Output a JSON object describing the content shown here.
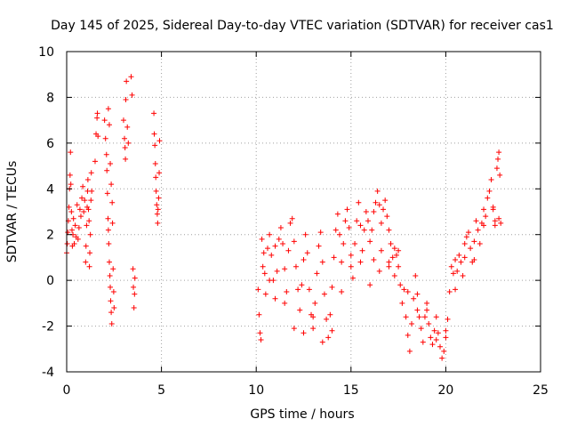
{
  "chart_data": {
    "type": "scatter",
    "title": "Day 145 of 2025, Sidereal Day-to-day VTEC variation (SDTVAR) for receiver cas1",
    "xlabel": "GPS time / hours",
    "ylabel": "SDTVAR / TECUs",
    "xlim": [
      0,
      25
    ],
    "ylim": [
      -4,
      10
    ],
    "xticks": [
      "0",
      "5",
      "10",
      "15",
      "20",
      "25"
    ],
    "yticks": [
      "-4",
      "-2",
      "0",
      "2",
      "4",
      "6",
      "8",
      "10"
    ],
    "grid": true,
    "marker": "+",
    "color": "#ff0000",
    "series": [
      {
        "name": "SDTVAR",
        "points": [
          [
            0.0,
            1.2
          ],
          [
            0.03,
            1.6
          ],
          [
            0.06,
            2.1
          ],
          [
            0.09,
            2.6
          ],
          [
            0.12,
            3.2
          ],
          [
            0.15,
            4.0
          ],
          [
            0.18,
            4.6
          ],
          [
            0.2,
            5.6
          ],
          [
            0.22,
            4.2
          ],
          [
            0.25,
            3.0
          ],
          [
            0.28,
            2.2
          ],
          [
            0.3,
            1.5
          ],
          [
            0.33,
            2.0
          ],
          [
            0.36,
            2.7
          ],
          [
            0.4,
            1.6
          ],
          [
            0.45,
            2.4
          ],
          [
            0.5,
            1.9
          ],
          [
            0.55,
            3.3
          ],
          [
            0.6,
            1.8
          ],
          [
            0.65,
            2.3
          ],
          [
            0.7,
            3.1
          ],
          [
            0.75,
            2.8
          ],
          [
            0.8,
            3.6
          ],
          [
            0.85,
            4.1
          ],
          [
            0.9,
            3.0
          ],
          [
            0.95,
            3.5
          ],
          [
            1.0,
            0.8
          ],
          [
            1.02,
            1.5
          ],
          [
            1.05,
            2.4
          ],
          [
            1.08,
            3.2
          ],
          [
            1.1,
            3.9
          ],
          [
            1.12,
            4.4
          ],
          [
            1.15,
            3.1
          ],
          [
            1.18,
            2.6
          ],
          [
            1.2,
            0.6
          ],
          [
            1.22,
            1.2
          ],
          [
            1.25,
            2.0
          ],
          [
            1.28,
            3.5
          ],
          [
            1.3,
            4.7
          ],
          [
            1.32,
            3.9
          ],
          [
            1.5,
            5.2
          ],
          [
            1.55,
            6.4
          ],
          [
            1.6,
            7.1
          ],
          [
            1.62,
            7.3
          ],
          [
            1.65,
            6.3
          ],
          [
            2.0,
            7.0
          ],
          [
            2.05,
            6.2
          ],
          [
            2.1,
            5.5
          ],
          [
            2.12,
            4.8
          ],
          [
            2.15,
            3.8
          ],
          [
            2.18,
            2.7
          ],
          [
            2.2,
            2.2
          ],
          [
            2.22,
            1.6
          ],
          [
            2.25,
            0.8
          ],
          [
            2.28,
            0.2
          ],
          [
            2.3,
            -0.3
          ],
          [
            2.32,
            -0.9
          ],
          [
            2.35,
            -1.4
          ],
          [
            2.38,
            -1.9
          ],
          [
            2.2,
            7.5
          ],
          [
            2.25,
            6.8
          ],
          [
            2.3,
            5.1
          ],
          [
            2.35,
            4.2
          ],
          [
            2.4,
            3.4
          ],
          [
            2.42,
            2.5
          ],
          [
            2.45,
            0.5
          ],
          [
            2.48,
            -0.5
          ],
          [
            2.5,
            -1.2
          ],
          [
            3.0,
            7.0
          ],
          [
            3.05,
            6.2
          ],
          [
            3.08,
            5.8
          ],
          [
            3.1,
            5.3
          ],
          [
            3.12,
            7.9
          ],
          [
            3.15,
            8.7
          ],
          [
            3.2,
            6.7
          ],
          [
            3.25,
            6.0
          ],
          [
            3.4,
            8.9
          ],
          [
            3.45,
            8.1
          ],
          [
            3.5,
            0.5
          ],
          [
            3.52,
            -0.3
          ],
          [
            3.55,
            -1.2
          ],
          [
            3.58,
            -0.6
          ],
          [
            3.6,
            0.1
          ],
          [
            4.6,
            7.3
          ],
          [
            4.62,
            6.4
          ],
          [
            4.65,
            5.9
          ],
          [
            4.68,
            5.1
          ],
          [
            4.7,
            4.5
          ],
          [
            4.72,
            3.9
          ],
          [
            4.75,
            3.3
          ],
          [
            4.78,
            2.9
          ],
          [
            4.8,
            2.5
          ],
          [
            4.82,
            3.1
          ],
          [
            4.85,
            3.6
          ],
          [
            4.88,
            4.7
          ],
          [
            4.9,
            6.1
          ],
          [
            10.1,
            -0.4
          ],
          [
            10.15,
            -1.5
          ],
          [
            10.2,
            -2.3
          ],
          [
            10.25,
            -2.6
          ],
          [
            10.3,
            1.8
          ],
          [
            10.35,
            0.6
          ],
          [
            10.4,
            1.2
          ],
          [
            10.45,
            0.3
          ],
          [
            10.5,
            -0.6
          ],
          [
            10.6,
            1.4
          ],
          [
            10.7,
            2.0
          ],
          [
            10.8,
            1.1
          ],
          [
            10.9,
            0.0
          ],
          [
            11.0,
            -0.8
          ],
          [
            11.1,
            0.4
          ],
          [
            11.2,
            1.8
          ],
          [
            11.3,
            2.3
          ],
          [
            11.4,
            1.6
          ],
          [
            11.5,
            0.5
          ],
          [
            11.6,
            -0.5
          ],
          [
            11.7,
            1.3
          ],
          [
            11.8,
            2.5
          ],
          [
            11.9,
            2.7
          ],
          [
            12.0,
            1.7
          ],
          [
            12.1,
            0.6
          ],
          [
            12.2,
            -0.4
          ],
          [
            12.3,
            -1.3
          ],
          [
            12.4,
            -0.2
          ],
          [
            12.5,
            0.9
          ],
          [
            12.6,
            2.0
          ],
          [
            12.7,
            1.2
          ],
          [
            12.8,
            -0.4
          ],
          [
            12.9,
            -1.5
          ],
          [
            13.0,
            -2.1
          ],
          [
            13.1,
            -1.0
          ],
          [
            13.2,
            0.3
          ],
          [
            13.3,
            1.5
          ],
          [
            13.4,
            2.1
          ],
          [
            13.5,
            0.8
          ],
          [
            13.6,
            -0.6
          ],
          [
            13.7,
            -1.7
          ],
          [
            13.8,
            -2.5
          ],
          [
            13.9,
            -1.5
          ],
          [
            14.0,
            -0.3
          ],
          [
            14.1,
            1.0
          ],
          [
            14.2,
            2.2
          ],
          [
            14.3,
            2.9
          ],
          [
            14.4,
            2.0
          ],
          [
            14.5,
            0.8
          ],
          [
            14.6,
            1.6
          ],
          [
            14.7,
            2.6
          ],
          [
            14.8,
            3.1
          ],
          [
            14.9,
            2.3
          ],
          [
            15.0,
            1.1
          ],
          [
            15.1,
            0.1
          ],
          [
            15.2,
            1.6
          ],
          [
            15.3,
            2.6
          ],
          [
            15.4,
            3.4
          ],
          [
            15.5,
            2.4
          ],
          [
            15.6,
            1.3
          ],
          [
            10.7,
            0.0
          ],
          [
            11.0,
            1.5
          ],
          [
            11.5,
            -1.0
          ],
          [
            12.0,
            -2.1
          ],
          [
            12.5,
            -2.3
          ],
          [
            13.0,
            -1.6
          ],
          [
            13.5,
            -2.7
          ],
          [
            14.0,
            -2.2
          ],
          [
            14.5,
            -0.5
          ],
          [
            15.0,
            0.6
          ],
          [
            15.5,
            0.8
          ],
          [
            16.0,
            -0.2
          ],
          [
            16.5,
            0.4
          ],
          [
            17.0,
            0.6
          ],
          [
            16.2,
            0.9
          ],
          [
            16.6,
            1.3
          ],
          [
            17.3,
            0.2
          ],
          [
            15.7,
            2.2
          ],
          [
            15.8,
            3.0
          ],
          [
            15.9,
            2.6
          ],
          [
            16.0,
            1.7
          ],
          [
            16.1,
            2.2
          ],
          [
            16.2,
            3.0
          ],
          [
            16.3,
            3.4
          ],
          [
            16.4,
            3.9
          ],
          [
            16.5,
            3.3
          ],
          [
            16.6,
            2.5
          ],
          [
            16.7,
            3.1
          ],
          [
            16.8,
            3.5
          ],
          [
            16.9,
            2.8
          ],
          [
            17.0,
            2.2
          ],
          [
            17.1,
            1.6
          ],
          [
            17.2,
            1.0
          ],
          [
            17.3,
            1.4
          ],
          [
            17.4,
            1.1
          ],
          [
            17.5,
            0.6
          ],
          [
            17.6,
            -0.2
          ],
          [
            17.7,
            -1.0
          ],
          [
            17.8,
            -0.4
          ],
          [
            17.9,
            -1.6
          ],
          [
            18.0,
            -2.4
          ],
          [
            18.1,
            -3.1
          ],
          [
            18.2,
            -1.9
          ],
          [
            18.3,
            -0.8
          ],
          [
            18.4,
            0.2
          ],
          [
            18.5,
            -0.6
          ],
          [
            18.6,
            -1.6
          ],
          [
            18.7,
            -2.1
          ],
          [
            18.8,
            -2.7
          ],
          [
            18.9,
            -1.6
          ],
          [
            19.0,
            -1.3
          ],
          [
            19.1,
            -1.9
          ],
          [
            19.2,
            -2.5
          ],
          [
            19.3,
            -2.8
          ],
          [
            19.4,
            -2.2
          ],
          [
            19.5,
            -1.6
          ],
          [
            19.6,
            -2.3
          ],
          [
            19.7,
            -2.9
          ],
          [
            19.8,
            -3.4
          ],
          [
            19.9,
            -3.1
          ],
          [
            20.0,
            -2.5
          ],
          [
            20.1,
            -1.7
          ],
          [
            20.2,
            -0.5
          ],
          [
            20.3,
            0.6
          ],
          [
            20.4,
            0.3
          ],
          [
            20.5,
            -0.4
          ],
          [
            20.6,
            0.4
          ],
          [
            20.7,
            1.1
          ],
          [
            20.8,
            0.8
          ],
          [
            20.9,
            0.2
          ],
          [
            21.0,
            1.0
          ],
          [
            21.1,
            1.9
          ],
          [
            21.2,
            2.1
          ],
          [
            21.3,
            1.4
          ],
          [
            21.4,
            0.8
          ],
          [
            21.5,
            1.7
          ],
          [
            21.6,
            2.6
          ],
          [
            21.7,
            2.2
          ],
          [
            21.8,
            1.6
          ],
          [
            21.9,
            2.5
          ],
          [
            22.0,
            3.1
          ],
          [
            22.1,
            2.8
          ],
          [
            22.2,
            3.6
          ],
          [
            22.3,
            3.9
          ],
          [
            22.4,
            4.4
          ],
          [
            22.5,
            3.2
          ],
          [
            22.6,
            2.6
          ],
          [
            22.7,
            4.9
          ],
          [
            22.75,
            5.3
          ],
          [
            22.8,
            5.6
          ],
          [
            22.85,
            4.6
          ],
          [
            22.9,
            2.5
          ],
          [
            17.0,
            0.8
          ],
          [
            17.5,
            1.3
          ],
          [
            18.0,
            -0.5
          ],
          [
            18.5,
            -1.3
          ],
          [
            19.0,
            -1.0
          ],
          [
            19.5,
            -2.6
          ],
          [
            20.0,
            -2.2
          ],
          [
            20.5,
            0.9
          ],
          [
            21.0,
            1.6
          ],
          [
            21.5,
            0.9
          ],
          [
            22.0,
            2.4
          ],
          [
            22.5,
            3.1
          ],
          [
            22.6,
            2.4
          ],
          [
            22.8,
            2.7
          ]
        ]
      }
    ]
  }
}
